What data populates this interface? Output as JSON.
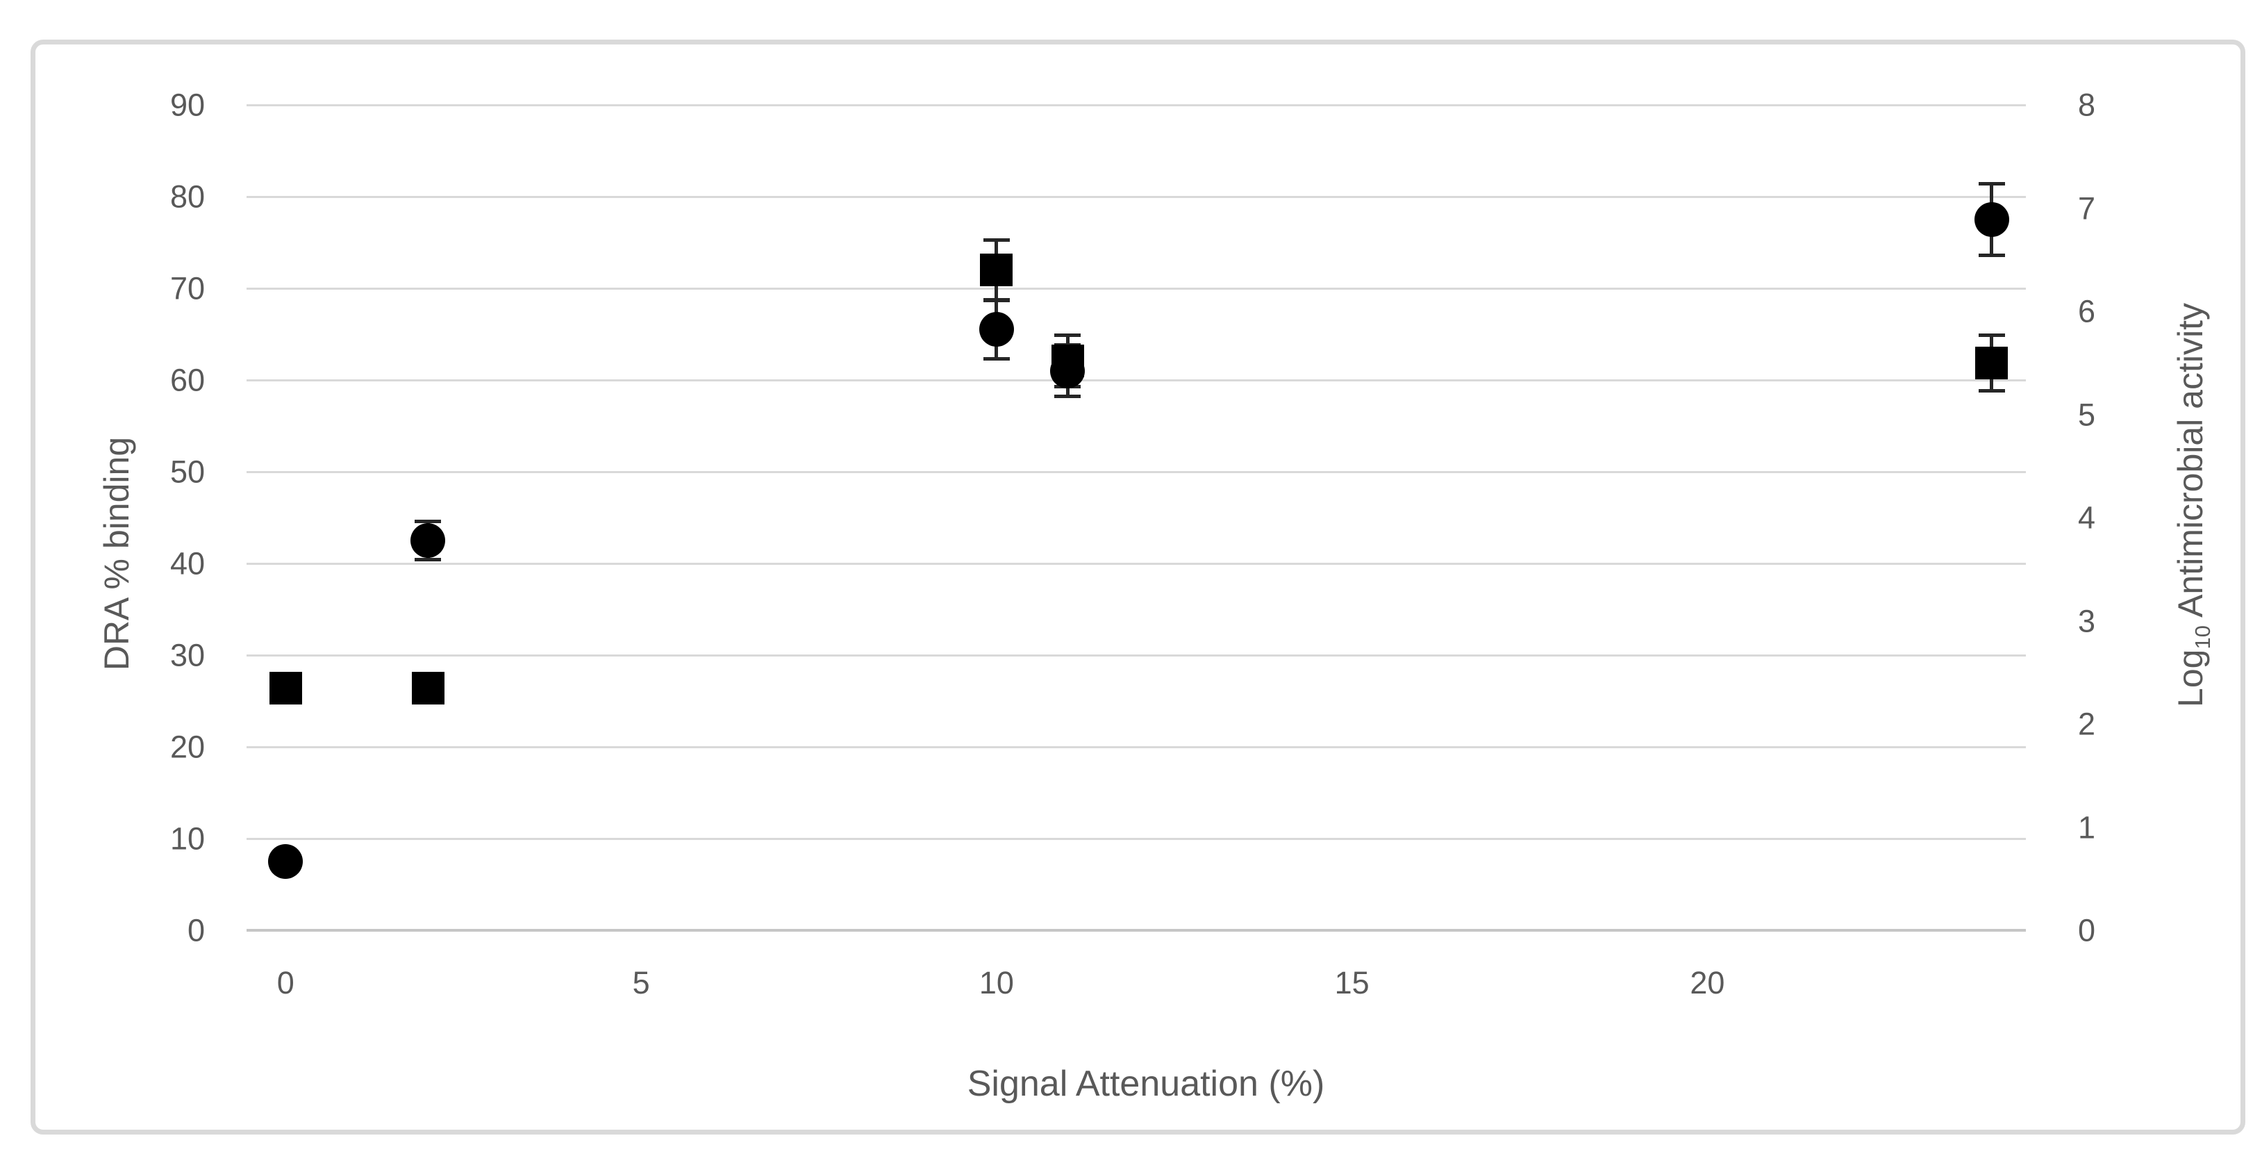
{
  "chart_data": {
    "type": "scatter",
    "title": "",
    "x_axis": {
      "label": "Signal Attenuation (%)",
      "ticks": [
        0,
        5,
        10,
        15,
        20
      ],
      "range": [
        -0.55,
        24.48
      ],
      "grid": false
    },
    "y_axis_left": {
      "label": "DRA % binding",
      "ticks": [
        0,
        10,
        20,
        30,
        40,
        50,
        60,
        70,
        80,
        90
      ],
      "range": [
        0,
        90
      ],
      "grid": true
    },
    "y_axis_right": {
      "label_prefix": "Log",
      "label_sub": "10",
      "label_suffix": " Antimicrobial activity",
      "ticks": [
        0,
        1,
        2,
        3,
        4,
        5,
        6,
        7,
        8
      ],
      "range": [
        0,
        8
      ]
    },
    "legend": "none",
    "series": [
      {
        "name": "DRA % binding",
        "marker": "circle",
        "axis": "left",
        "color": "#000000",
        "points": [
          {
            "x": 0,
            "y": 7.5,
            "err": 0
          },
          {
            "x": 2,
            "y": 42.5,
            "err": 2.1
          },
          {
            "x": 10,
            "y": 65.5,
            "err": 3.2
          },
          {
            "x": 11,
            "y": 61,
            "err": 2.8
          },
          {
            "x": 24,
            "y": 77.5,
            "err": 3.9
          }
        ]
      },
      {
        "name": "Log10 Antimicrobial activity",
        "marker": "square",
        "axis": "right",
        "color": "#000000",
        "points": [
          {
            "x": 0,
            "y": 2.35,
            "err": 0
          },
          {
            "x": 2,
            "y": 2.35,
            "err": 0
          },
          {
            "x": 10,
            "y": 6.4,
            "err": 0.29
          },
          {
            "x": 11,
            "y": 5.52,
            "err": 0.25
          },
          {
            "x": 24,
            "y": 5.5,
            "err": 0.27
          }
        ]
      }
    ]
  },
  "style": {
    "gridline_color": "#d9d9d9",
    "axis_line_color": "#c6c6c6",
    "tick_text_color": "#595959",
    "marker_color": "#000000",
    "border_color": "#d9d9d9",
    "background": "#ffffff"
  }
}
